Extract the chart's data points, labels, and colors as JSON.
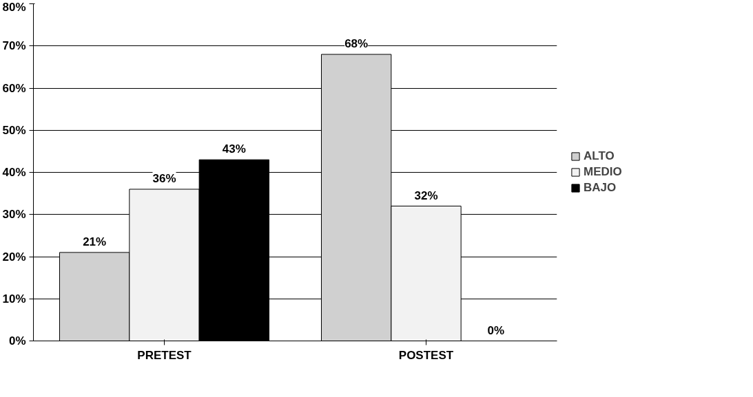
{
  "chart_data": {
    "type": "bar",
    "categories": [
      "PRETEST",
      "POSTEST"
    ],
    "series": [
      {
        "name": "ALTO",
        "color": "#d0d0d0",
        "values": [
          21,
          68
        ],
        "value_labels": [
          "21%",
          "68%"
        ]
      },
      {
        "name": "MEDIO",
        "color": "#f2f2f2",
        "values": [
          36,
          32
        ],
        "value_labels": [
          "36%",
          "32%"
        ]
      },
      {
        "name": "BAJO",
        "color": "#000000",
        "values": [
          43,
          0
        ],
        "value_labels": [
          "43%",
          "0%"
        ]
      }
    ],
    "ylim": [
      0,
      80
    ],
    "yticks": [
      {
        "value": 0,
        "label": "0%"
      },
      {
        "value": 10,
        "label": "10%"
      },
      {
        "value": 20,
        "label": "20%"
      },
      {
        "value": 30,
        "label": "30%"
      },
      {
        "value": 40,
        "label": "40%"
      },
      {
        "value": 50,
        "label": "50%"
      },
      {
        "value": 60,
        "label": "60%"
      },
      {
        "value": 70,
        "label": "70%"
      },
      {
        "value": 80,
        "label": "80%"
      }
    ],
    "grid": "y",
    "legend": "right"
  }
}
